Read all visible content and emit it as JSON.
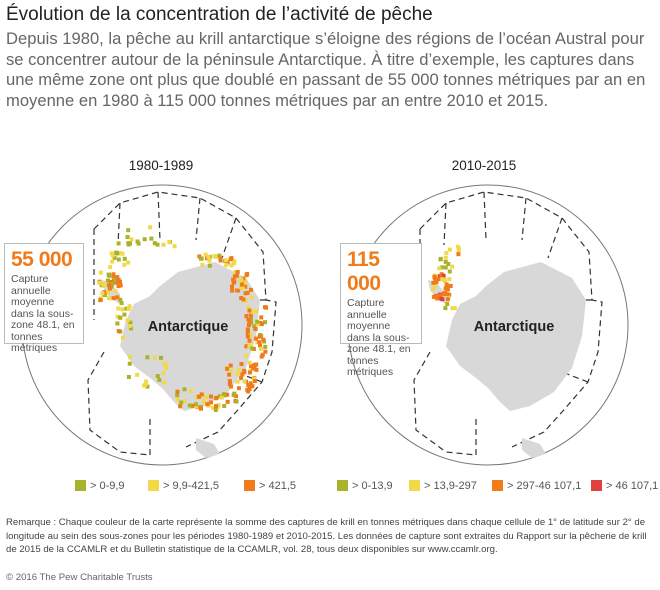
{
  "header": {
    "title": "Évolution de la concentration de l’activité de pêche",
    "subtitle": "Depuis 1980, la pêche au krill antarctique s’éloigne des régions de l’océan Austral pour se concentrer autour de la péninsule Antarctique. À titre d’exemple, les captures dans une même zone ont plus que doublé en passant de 55 000 tonnes métriques par an en moyenne en 1980 à 115 000 tonnes métriques par an entre 2010 et 2015."
  },
  "panels": [
    {
      "title": "1980-1989",
      "continent_label": "Antarctique",
      "callout_value": "55 000",
      "callout_text": "Capture annuelle moyenne dans la sous-zone 48.1, en tonnes métriques",
      "legend": [
        {
          "label": "> 0-9,9",
          "color": "#a9b22b"
        },
        {
          "label": "> 9,9-421,5",
          "color": "#f2d94a"
        },
        {
          "label": "> 421,5",
          "color": "#f07b1a"
        }
      ]
    },
    {
      "title": "2010-2015",
      "continent_label": "Antarctique",
      "callout_value": "115 000",
      "callout_text": "Capture annuelle moyenne dans la sous-zone 48.1, en tonnes métriques",
      "legend": [
        {
          "label": "> 0-13,9",
          "color": "#a9b22b"
        },
        {
          "label": "> 13,9-297",
          "color": "#f2d94a"
        },
        {
          "label": "> 297-46 107,1",
          "color": "#f07b1a"
        },
        {
          "label": "> 46 107,1",
          "color": "#e04040"
        }
      ]
    }
  ],
  "footer": {
    "note": "Remarque : Chaque couleur de la carte représente la somme des captures de krill en tonnes métriques dans chaque cellule de 1° de latitude sur 2° de longitude au sein des sous-zones pour les périodes 1980-1989 et 2010-2015. Les données de capture sont extraites du Rapport sur la pêcherie de krill de 2015 de la CCAMLR et du Bulletin statistique de la CCAMLR, vol. 28, tous deux disponibles sur www.ccamlr.org.",
    "copyright": "© 2016 The Pew Charitable Trusts"
  },
  "colors": {
    "low": "#a9b22b",
    "mid": "#f2d94a",
    "high": "#f07b1a",
    "very_high": "#e04040",
    "land": "#d8d8d8",
    "callout_value": "#f07b1a"
  }
}
